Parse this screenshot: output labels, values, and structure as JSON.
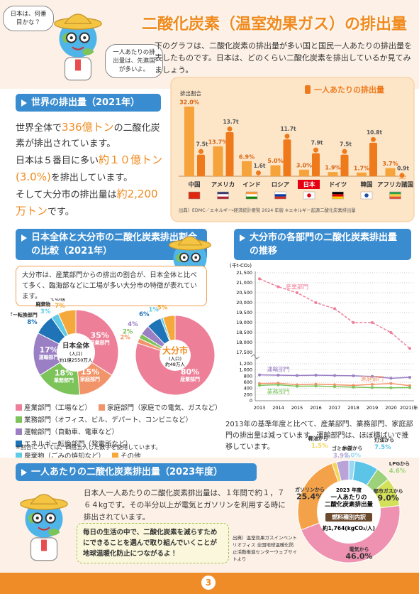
{
  "header": {
    "title": "二酸化炭素（温室効果ガス）の排出量",
    "bubbles": [
      "日本は、何番目かな？",
      "一人あたりの排出量は、先進国が多いよ。"
    ],
    "intro": "下のグラフは、二酸化炭素の排出量が多い国と国民一人あたりの排出量を表したものです。日本は、どのくらい二酸化炭素を排出しているか見てみましょう。"
  },
  "world": {
    "heading": "世界の排出量（2021年）",
    "text": [
      [
        "世界全体で",
        "336億トン",
        "の二酸化炭素が排出されています。"
      ],
      [
        "日本は５番目に多い",
        "約１０億トン(3.0%)",
        "を排出しています。"
      ],
      [
        "そして大分市の排出量は",
        "約2,200万トン",
        "です。"
      ]
    ]
  },
  "ratio": {
    "heading": "日本全体と大分市の二酸化炭素排出割合の比較（2021年）",
    "speech": "大分市は、産業部門からの排出の割合が、日本全体と比べて多く、臨海部などに工場が多い大分市の特徴が表れています。",
    "legend": [
      "産業部門（工場など）",
      "家庭部門（家庭での電気、ガスなど）",
      "業務部門（オフィス、ビル、デパート、コンビニなど）",
      "運輸部門（自動車、電車など）",
      "エネルギー転換部門（発電所など）",
      "廃棄物（ごみの焼却など）",
      "その他"
    ],
    "note": "※割合については、四捨五入した数字を使用しています。"
  },
  "trend": {
    "heading": "大分市の各部門の二酸化炭素排出量の推移",
    "text": "2013年の基準年度と比べて、産業部門、業務部門、家庭部門の排出量は減っています。運輸部門は、ほぼ横ばいで推移しています。"
  },
  "per_person": {
    "heading": "一人あたりの二酸化炭素排出量（2023年度）",
    "text": "日本人一人あたりの二酸化炭素排出量は、１年間で約１，７６４kgです。その半分以上が電気とガソリンを利用する時に排出されています。",
    "callout": "毎日の生活の中で、二酸化炭素を減らすためにできることを選んで取り組んでいくことが地球温暖化防止につながるよ！",
    "source": "出典）温室効果ガスインベントリオフィス 全国地球温暖化防止活動推進センターウェブサイトより"
  },
  "page_number": "3",
  "chart_data": [
    {
      "type": "bar",
      "categories": [
        "中国",
        "アメリカ",
        "インド",
        "ロシア",
        "日本",
        "ドイツ",
        "韓国",
        "アフリカ諸国"
      ],
      "series": [
        {
          "name": "排出割合",
          "color": "#f5a33a",
          "values": [
            32.0,
            13.7,
            6.9,
            5.0,
            3.0,
            1.9,
            1.7,
            3.7
          ],
          "value_labels": [
            "32.0%",
            "13.7%",
            "6.9%",
            "5.0%",
            "3.0%",
            "1.9%",
            "1.7%",
            "3.7%"
          ]
        },
        {
          "name": "一人あたりの排出量",
          "color": "#ee7a1c",
          "values": [
            7.5,
            13.7,
            1.6,
            11.7,
            7.9,
            7.5,
            10.8,
            0.9
          ],
          "value_labels": [
            "7.5t",
            "13.7t",
            "1.6t",
            "11.7t",
            "7.9t",
            "7.5t",
            "10.8t",
            "0.9t"
          ]
        }
      ],
      "highlight_index": 4,
      "legend": "top-right",
      "source": "出典）EDMC／エネルギー・経済統計要覧 2024 年版 ※エネルギー起源二酸化炭素排出量"
    },
    {
      "type": "pie",
      "title": "日本全体",
      "population_label": "(人口)",
      "population": "約1億2550万人",
      "categories": [
        "産業部門",
        "家庭部門",
        "業務部門",
        "運輸部門",
        "エネルギー転換部門",
        "廃棄物",
        "その他"
      ],
      "values": [
        35,
        15,
        18,
        17,
        8,
        3,
        7
      ],
      "value_labels": [
        "35%",
        "15%",
        "18%",
        "17%",
        "8%",
        "3%",
        "7%"
      ],
      "colors": [
        "#ee7f98",
        "#f2946a",
        "#7cc35a",
        "#9a7fc4",
        "#1f73b7",
        "#5fcbe6",
        "#f6a93b"
      ]
    },
    {
      "type": "pie",
      "title": "大分市",
      "population_label": "(人口)",
      "population": "約48万人",
      "categories": [
        "産業部門",
        null,
        null,
        null,
        null,
        null,
        null
      ],
      "values": [
        80,
        2,
        2,
        4,
        6,
        1,
        5
      ],
      "value_labels": [
        "80%",
        "2%",
        "2%",
        "4%",
        "6%",
        "1%",
        "5%"
      ],
      "colors": [
        "#ee7f98",
        "#f2946a",
        "#7cc35a",
        "#9a7fc4",
        "#1f73b7",
        "#5fcbe6",
        "#f6a93b"
      ]
    },
    {
      "type": "line",
      "y_unit": "(千t-CO₂)",
      "grid": true,
      "categories": [
        "2013",
        "2014",
        "2015",
        "2016",
        "2017",
        "2018",
        "2019",
        "2020",
        "2021(年)"
      ],
      "panels": [
        {
          "ylim": [
            17500,
            21500
          ],
          "yticks": [
            {
              "value": 21500,
              "label": "21,500"
            },
            {
              "value": 21000,
              "label": "21,000"
            },
            {
              "value": 20500,
              "label": "20,500"
            },
            {
              "value": 20000,
              "label": "20,000"
            },
            {
              "value": 19500,
              "label": "19,500"
            },
            {
              "value": 19000,
              "label": "19,000"
            },
            {
              "value": 18500,
              "label": "18,500"
            },
            {
              "value": 18000,
              "label": "18,000"
            },
            {
              "value": 17500,
              "label": "17,500"
            }
          ],
          "series": [
            {
              "name": "産業部門",
              "color": "#ee7f98",
              "values": [
                21200,
                20800,
                20500,
                20000,
                19700,
                19000,
                19000,
                18500,
                17700
              ]
            }
          ]
        },
        {
          "ylim": [
            0,
            1200
          ],
          "yticks": [
            {
              "value": 1200,
              "label": "1,200"
            },
            {
              "value": 1000,
              "label": "1,000"
            },
            800,
            600,
            400,
            200,
            0
          ],
          "series": [
            {
              "name": "運輸部門",
              "color": "#9a7fc4",
              "values": [
                840,
                830,
                820,
                830,
                820,
                810,
                790,
                730,
                760
              ]
            },
            {
              "name": "家庭部門",
              "color": "#f2946a",
              "values": [
                560,
                570,
                520,
                540,
                520,
                500,
                530,
                560,
                490
              ]
            },
            {
              "name": "業務部門",
              "color": "#7cc35a",
              "values": [
                500,
                520,
                470,
                480,
                460,
                440,
                430,
                420,
                430
              ]
            }
          ]
        }
      ]
    },
    {
      "type": "pie",
      "donut": true,
      "center_lines": [
        "2023 年度",
        "一人あたりの",
        "二酸化炭素排出量"
      ],
      "badge": "燃料種別内訳",
      "total": "約1,764(kgCO₂/人)",
      "categories": [
        "水道から",
        "灯油から",
        "LPGから",
        "都市ガスから",
        "電気から",
        "ガソリンから",
        "軽油から",
        "ゴミから"
      ],
      "values": [
        2.0,
        7.5,
        4.6,
        9.0,
        46.0,
        25.4,
        1.5,
        3.9
      ],
      "value_labels": [
        "2.0%",
        "7.5%",
        "4.6%",
        "9.0%",
        "46.0%",
        "25.4%",
        "1.5%",
        "3.9%"
      ],
      "colors": [
        "#9ad8f2",
        "#5cc4e6",
        "#9ed27a",
        "#d2e05a",
        "#ef92b2",
        "#f4a24a",
        "#f4d65a",
        "#b9a3d9"
      ]
    }
  ]
}
